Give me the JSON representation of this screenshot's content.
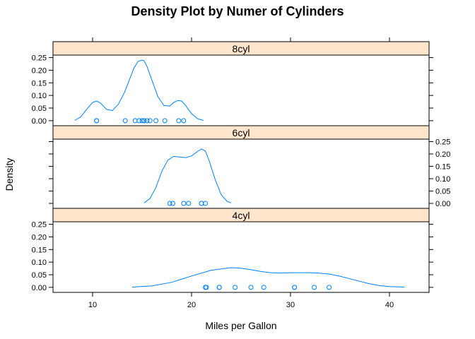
{
  "chart_data": {
    "type": "line",
    "title": "Density Plot by Numer of Cylinders",
    "xlabel": "Miles per Gallon",
    "ylabel": "Density",
    "xlim": [
      6,
      44
    ],
    "ylim": [
      -0.02,
      0.26
    ],
    "x_ticks": [
      10,
      20,
      30,
      40
    ],
    "y_ticks": [
      0.0,
      0.05,
      0.1,
      0.15,
      0.2,
      0.25
    ],
    "y_tick_labels": [
      "0.00",
      "0.05",
      "0.10",
      "0.15",
      "0.20",
      "0.25"
    ],
    "line_color": "#0080ff",
    "strip_color": "#ffe5cc",
    "panels": [
      {
        "label": "8cyl",
        "position": "top",
        "y_axis_side": "left",
        "density": {
          "x": [
            8.2,
            8.8,
            9.4,
            10.0,
            10.4,
            10.8,
            11.4,
            12.0,
            12.6,
            13.2,
            13.8,
            14.2,
            14.6,
            15.0,
            15.2,
            15.5,
            16.0,
            16.6,
            17.2,
            17.8,
            18.2,
            18.6,
            19.0,
            19.4,
            20.0,
            20.6,
            21.2
          ],
          "y": [
            0.001,
            0.015,
            0.045,
            0.072,
            0.078,
            0.07,
            0.045,
            0.04,
            0.065,
            0.11,
            0.17,
            0.21,
            0.235,
            0.24,
            0.238,
            0.215,
            0.16,
            0.095,
            0.06,
            0.058,
            0.072,
            0.08,
            0.078,
            0.06,
            0.028,
            0.008,
            0.001
          ]
        },
        "points": [
          10.4,
          10.4,
          13.3,
          14.3,
          14.7,
          15.0,
          15.2,
          15.2,
          15.5,
          15.8,
          16.4,
          17.3,
          18.7,
          19.2
        ]
      },
      {
        "label": "6cyl",
        "position": "middle",
        "y_axis_side": "right",
        "density": {
          "x": [
            15.2,
            15.8,
            16.4,
            17.0,
            17.6,
            18.2,
            18.8,
            19.4,
            20.0,
            20.6,
            21.0,
            21.4,
            21.8,
            22.4,
            23.0,
            23.6,
            24.0
          ],
          "y": [
            0.002,
            0.02,
            0.065,
            0.13,
            0.175,
            0.19,
            0.188,
            0.185,
            0.192,
            0.21,
            0.22,
            0.212,
            0.17,
            0.095,
            0.035,
            0.008,
            0.002
          ]
        },
        "points": [
          17.8,
          18.1,
          19.2,
          19.7,
          21.0,
          21.0,
          21.4
        ]
      },
      {
        "label": "4cyl",
        "position": "bottom",
        "y_axis_side": "left",
        "density": {
          "x": [
            14.0,
            16.0,
            18.0,
            20.0,
            22.0,
            24.0,
            25.0,
            26.0,
            27.0,
            28.0,
            29.0,
            30.0,
            31.0,
            32.0,
            33.0,
            34.0,
            35.0,
            36.0,
            37.0,
            38.0,
            39.0,
            40.0,
            41.5
          ],
          "y": [
            0.001,
            0.006,
            0.02,
            0.045,
            0.068,
            0.078,
            0.076,
            0.07,
            0.063,
            0.058,
            0.057,
            0.058,
            0.058,
            0.058,
            0.056,
            0.052,
            0.044,
            0.034,
            0.024,
            0.014,
            0.007,
            0.003,
            0.001
          ]
        },
        "points": [
          21.4,
          21.5,
          22.8,
          22.8,
          24.4,
          26.0,
          27.3,
          30.4,
          30.4,
          32.4,
          33.9
        ]
      }
    ]
  }
}
